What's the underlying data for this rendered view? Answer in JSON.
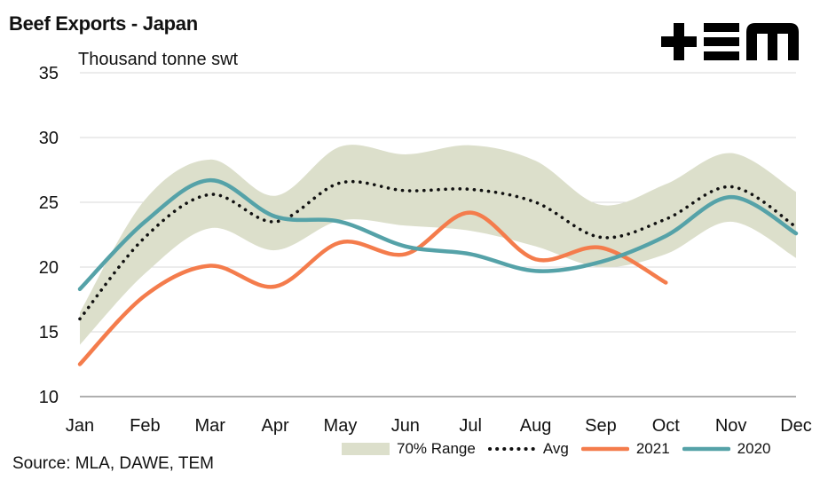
{
  "title": "Beef Exports - Japan",
  "source": "Source: MLA, DAWE, TEM",
  "logo": {
    "text": "TEM",
    "icon": "tem-logo"
  },
  "chart_data": {
    "type": "line",
    "title": "Beef Exports - Japan",
    "ylabel": "Thousand tonne swt",
    "xlabel": "",
    "categories": [
      "Jan",
      "Feb",
      "Mar",
      "Apr",
      "May",
      "Jun",
      "Jul",
      "Aug",
      "Sep",
      "Oct",
      "Nov",
      "Dec"
    ],
    "ylim": [
      10,
      35
    ],
    "yticks": [
      "10",
      "15",
      "20",
      "25",
      "30",
      "35"
    ],
    "grid": true,
    "legend_position": "bottom",
    "band": {
      "name": "70% Range",
      "color": "#dcdfcb",
      "upper": [
        16.5,
        25.2,
        28.3,
        25.5,
        29.3,
        28.7,
        29.4,
        28.2,
        24.8,
        26.4,
        28.8,
        25.8
      ],
      "lower": [
        14.0,
        19.5,
        23.0,
        21.3,
        23.6,
        23.2,
        22.8,
        21.6,
        20.0,
        21.0,
        23.5,
        20.7
      ]
    },
    "series": [
      {
        "name": "Avg",
        "color": "#111111",
        "style": "dotted",
        "values": [
          16.0,
          22.3,
          25.6,
          23.5,
          26.5,
          25.9,
          26.0,
          25.0,
          22.3,
          23.7,
          26.2,
          23.1
        ]
      },
      {
        "name": "2021",
        "color": "#f47c4c",
        "style": "solid",
        "values": [
          12.5,
          17.8,
          20.1,
          18.5,
          21.9,
          21.0,
          24.2,
          20.6,
          21.5,
          18.8,
          null,
          null
        ]
      },
      {
        "name": "2020",
        "color": "#55a2a8",
        "style": "solid",
        "values": [
          18.3,
          23.5,
          26.7,
          23.9,
          23.5,
          21.6,
          21.0,
          19.7,
          20.4,
          22.4,
          25.4,
          22.6
        ]
      }
    ]
  }
}
